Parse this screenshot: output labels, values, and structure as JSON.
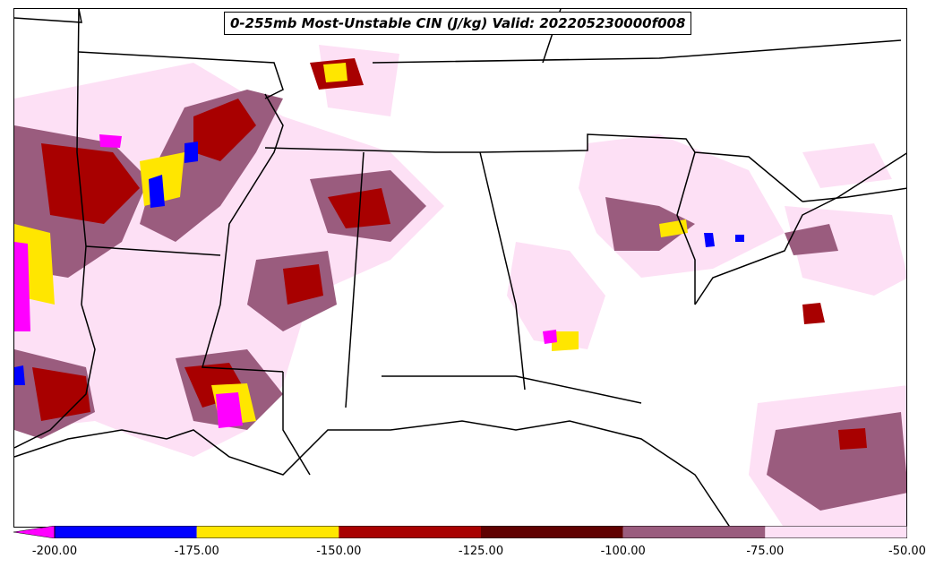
{
  "title": "0-255mb Most-Unstable CIN (J/kg) Valid: 202205230000f008",
  "colorbar": {
    "bins": [
      {
        "from": -200,
        "to": -175,
        "color": "#0000ff"
      },
      {
        "from": -175,
        "to": -150,
        "color": "#ffe600"
      },
      {
        "from": -150,
        "to": -125,
        "color": "#a80000"
      },
      {
        "from": -125,
        "to": -100,
        "color": "#600000"
      },
      {
        "from": -100,
        "to": -75,
        "color": "#9a5c7e"
      },
      {
        "from": -75,
        "to": -50,
        "color": "#fde0f5"
      }
    ],
    "extend_color": "#ff00ff",
    "tick_labels": [
      "-200.00",
      "-175.00",
      "-150.00",
      "-125.00",
      "-100.00",
      "-75.00",
      "-50.00"
    ]
  }
}
